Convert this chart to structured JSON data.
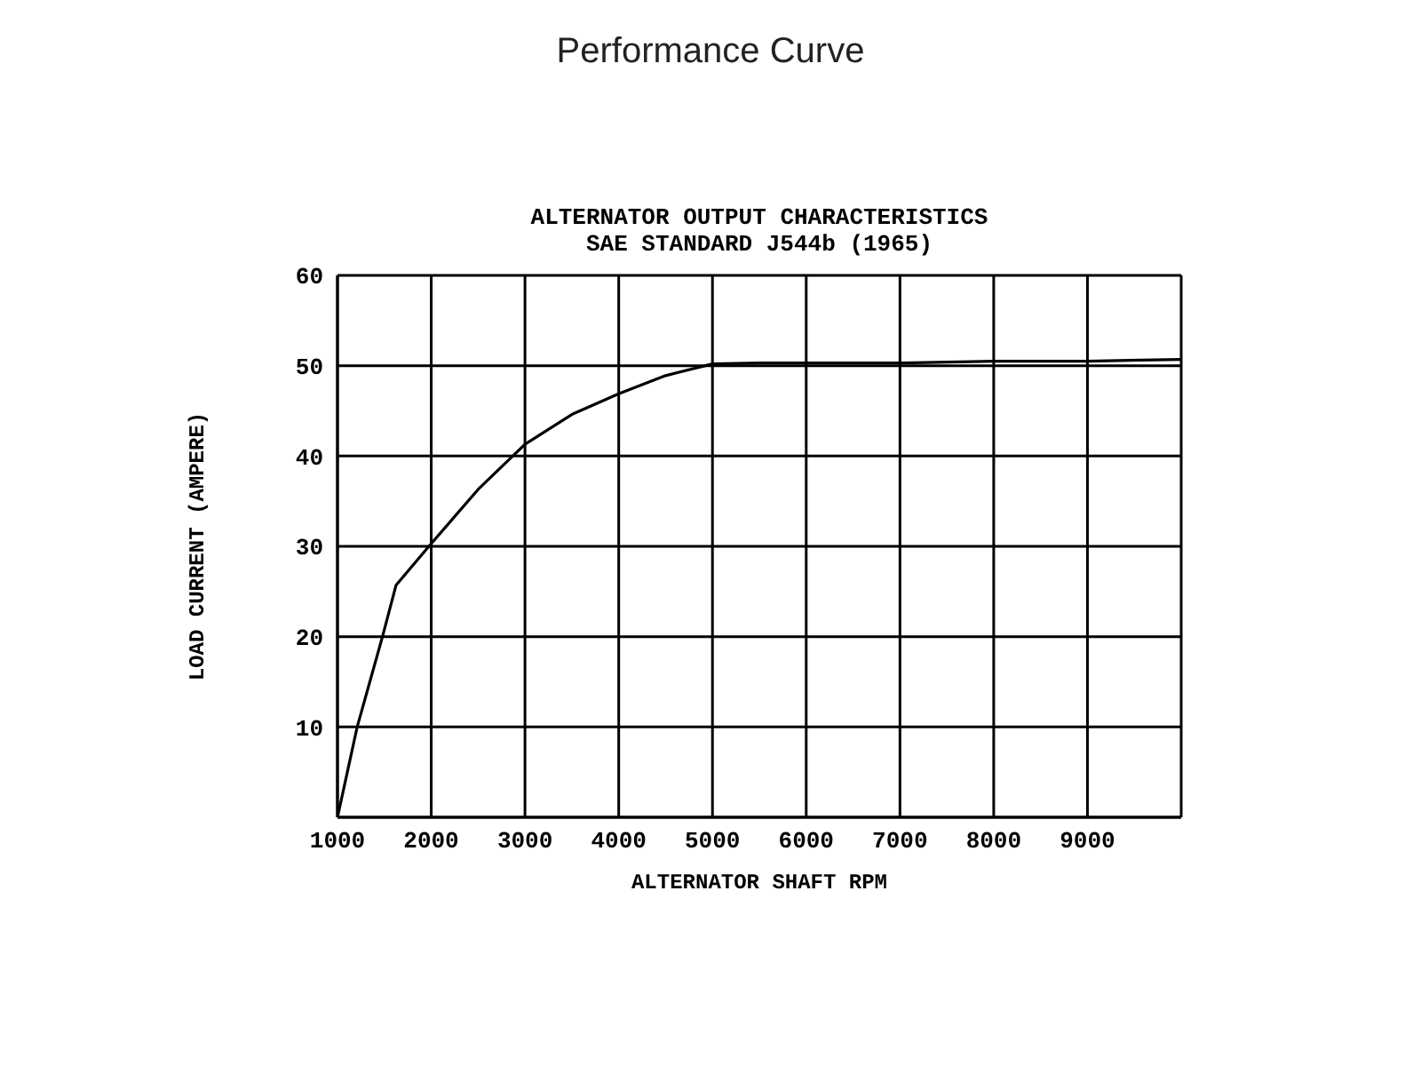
{
  "chart_data": {
    "type": "line",
    "title": "Performance Curve",
    "subtitle": "ALTERNATOR OUTPUT CHARACTERISTICS\nSAE STANDARD J544b (1965)",
    "xlabel": "ALTERNATOR SHAFT RPM",
    "ylabel": "LOAD CURRENT (AMPERE)",
    "x": [
      1000,
      1210,
      1480,
      1625,
      1975,
      2500,
      3000,
      3500,
      4000,
      4500,
      5000,
      5500,
      6000,
      7000,
      8000,
      9000,
      10000
    ],
    "series": [
      {
        "color": "#000000",
        "values": [
          0,
          10,
          20,
          25.7,
          30,
          36.3,
          41.3,
          44.6,
          46.9,
          48.9,
          50.2,
          50.3,
          50.3,
          50.3,
          50.5,
          50.5,
          50.7
        ]
      }
    ],
    "xlim": [
      1000,
      10000
    ],
    "xticks": [
      1000,
      2000,
      3000,
      4000,
      5000,
      6000,
      7000,
      8000,
      9000,
      {
        "value": 10000,
        "label": null
      }
    ],
    "ylim": [
      0,
      60
    ],
    "yticks": [
      {
        "value": 0,
        "label": null
      },
      10,
      20,
      30,
      40,
      50,
      60
    ],
    "grid": true,
    "marker": "none",
    "line_style": "solid"
  }
}
